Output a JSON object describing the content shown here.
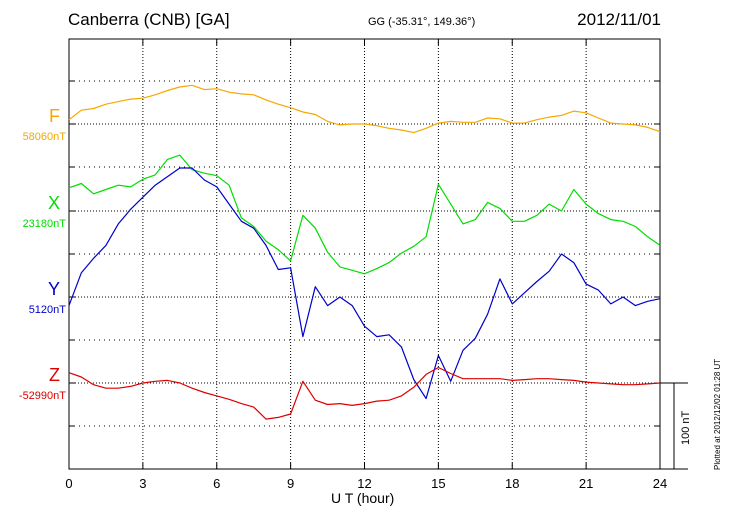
{
  "header": {
    "title": "Canberra (CNB)  [GA]",
    "coords": "GG (-35.31°, 149.36°)",
    "date": "2012/11/01"
  },
  "footer": {
    "plotted": "Plotted at 2012/12/02 01:28 UT"
  },
  "chart_data": {
    "type": "line",
    "xlabel": "U T (hour)",
    "xlim": [
      0,
      24
    ],
    "xticks": [
      "0",
      "3",
      "6",
      "9",
      "12",
      "15",
      "18",
      "21",
      "24"
    ],
    "grid": true,
    "scale_bar": {
      "label": "100 nT",
      "value_nT": 100
    },
    "series": [
      {
        "name": "F",
        "baseline_label": "58060nT",
        "baseline": 58060,
        "color": "#f5a800",
        "x": [
          0,
          0.5,
          1,
          1.5,
          2,
          2.5,
          3,
          3.5,
          4,
          4.5,
          5,
          5.5,
          6,
          6.5,
          7,
          7.5,
          8,
          8.5,
          9,
          9.5,
          10,
          10.5,
          11,
          11.5,
          12,
          12.5,
          13,
          13.5,
          14,
          14.5,
          15,
          15.5,
          16,
          16.5,
          17,
          17.5,
          18,
          18.5,
          19,
          19.5,
          20,
          20.5,
          21,
          21.5,
          22,
          22.5,
          23,
          23.5,
          24
        ],
        "y": [
          58065,
          58076,
          58078,
          58083,
          58086,
          58089,
          58090,
          58094,
          58099,
          58103,
          58105,
          58100,
          58101,
          58097,
          58095,
          58094,
          58088,
          58083,
          58079,
          58074,
          58071,
          58063,
          58059,
          58060,
          58060,
          58058,
          58055,
          58053,
          58050,
          58055,
          58061,
          58063,
          58062,
          58062,
          58067,
          58066,
          58061,
          58061,
          58065,
          58068,
          58070,
          58075,
          58073,
          58067,
          58061,
          58060,
          58059,
          58056,
          58051
        ]
      },
      {
        "name": "X",
        "baseline_label": "23180nT",
        "baseline": 23180,
        "color": "#00dd00",
        "x": [
          0,
          0.5,
          1,
          1.5,
          2,
          2.5,
          3,
          3.5,
          4,
          4.5,
          5,
          5.5,
          6,
          6.5,
          7,
          7.5,
          8,
          8.5,
          9,
          9.5,
          10,
          10.5,
          11,
          11.5,
          12,
          12.5,
          13,
          13.5,
          14,
          14.5,
          15,
          15.5,
          16,
          16.5,
          17,
          17.5,
          18,
          18.5,
          19,
          19.5,
          20,
          20.5,
          21,
          21.5,
          22,
          22.5,
          23,
          23.5,
          24
        ],
        "y": [
          23207,
          23212,
          23200,
          23205,
          23210,
          23208,
          23217,
          23222,
          23240,
          23245,
          23228,
          23224,
          23221,
          23210,
          23172,
          23162,
          23145,
          23135,
          23122,
          23175,
          23160,
          23132,
          23115,
          23111,
          23107,
          23113,
          23120,
          23131,
          23139,
          23150,
          23211,
          23188,
          23165,
          23170,
          23190,
          23183,
          23168,
          23168,
          23175,
          23188,
          23180,
          23205,
          23188,
          23177,
          23170,
          23168,
          23162,
          23150,
          23140
        ]
      },
      {
        "name": "Y",
        "baseline_label": "5120nT",
        "baseline": 5120,
        "color": "#0000cc",
        "x": [
          0,
          0.5,
          1,
          1.5,
          2,
          2.5,
          3,
          3.5,
          4,
          4.5,
          5,
          5.5,
          6,
          6.5,
          7,
          7.5,
          8,
          8.5,
          9,
          9.5,
          10,
          10.5,
          11,
          11.5,
          12,
          12.5,
          13,
          13.5,
          14,
          14.5,
          15,
          15.5,
          16,
          16.5,
          17,
          17.5,
          18,
          18.5,
          19,
          19.5,
          20,
          20.5,
          21,
          21.5,
          22,
          22.5,
          23,
          23.5,
          24
        ],
        "y": [
          5110,
          5148,
          5165,
          5180,
          5205,
          5222,
          5236,
          5250,
          5260,
          5270,
          5270,
          5256,
          5248,
          5228,
          5208,
          5200,
          5180,
          5152,
          5154,
          5074,
          5132,
          5110,
          5120,
          5110,
          5086,
          5074,
          5076,
          5062,
          5024,
          5002,
          5052,
          5022,
          5058,
          5072,
          5100,
          5141,
          5112,
          5125,
          5138,
          5150,
          5170,
          5160,
          5135,
          5128,
          5112,
          5120,
          5110,
          5115,
          5118
        ]
      },
      {
        "name": "Z",
        "baseline_label": "-52990nT",
        "baseline": -52990,
        "color": "#dd0000",
        "x": [
          0,
          0.5,
          1,
          1.5,
          2,
          2.5,
          3,
          3.5,
          4,
          4.5,
          5,
          5.5,
          6,
          6.5,
          7,
          7.5,
          8,
          8.5,
          9,
          9.5,
          10,
          10.5,
          11,
          11.5,
          12,
          12.5,
          13,
          13.5,
          14,
          14.5,
          15,
          15.5,
          16,
          16.5,
          17,
          17.5,
          18,
          18.5,
          19,
          19.5,
          20,
          20.5,
          21,
          21.5,
          22,
          22.5,
          23,
          23.5,
          24
        ],
        "y": [
          -52978,
          -52983,
          -52992,
          -52996,
          -52996,
          -52994,
          -52990,
          -52988,
          -52987,
          -52990,
          -52996,
          -53001,
          -53005,
          -53009,
          -53014,
          -53018,
          -53032,
          -53030,
          -53026,
          -52988,
          -53010,
          -53015,
          -53014,
          -53016,
          -53014,
          -53011,
          -53010,
          -53005,
          -52995,
          -52980,
          -52972,
          -52979,
          -52985,
          -52985,
          -52985,
          -52985,
          -52987,
          -52986,
          -52985,
          -52985,
          -52986,
          -52987,
          -52989,
          -52990,
          -52991,
          -52992,
          -52992,
          -52991,
          -52990
        ]
      }
    ]
  }
}
